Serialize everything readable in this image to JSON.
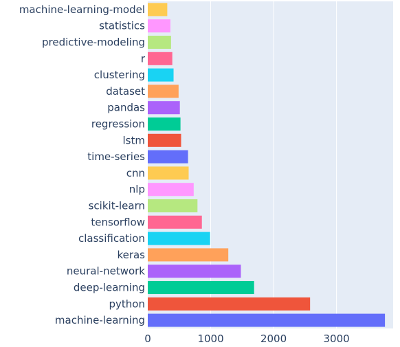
{
  "chart_data": {
    "type": "bar",
    "orientation": "horizontal",
    "title": "",
    "xlabel": "",
    "ylabel": "",
    "xlim": [
      0,
      3900
    ],
    "x_ticks": [
      0,
      1000,
      2000,
      3000
    ],
    "x_tick_labels": [
      "0",
      "1000",
      "2000",
      "3000"
    ],
    "grid": true,
    "legend": "none",
    "plot_background": "#e5ecf6",
    "grid_color": "#ffffff",
    "text_color": "#2a3f5f",
    "categories": [
      "machine-learning-model",
      "statistics",
      "predictive-modeling",
      "r",
      "clustering",
      "dataset",
      "pandas",
      "regression",
      "lstm",
      "time-series",
      "cnn",
      "nlp",
      "scikit-learn",
      "tensorflow",
      "classification",
      "keras",
      "neural-network",
      "deep-learning",
      "python",
      "machine-learning"
    ],
    "values": [
      310,
      360,
      370,
      390,
      410,
      490,
      510,
      520,
      530,
      640,
      650,
      730,
      790,
      860,
      990,
      1280,
      1480,
      1690,
      2580,
      3770
    ],
    "colors": [
      "#FECB52",
      "#FF97FF",
      "#B6E880",
      "#FF6692",
      "#19D3F3",
      "#FFA15A",
      "#AB63FA",
      "#00CC96",
      "#EF553B",
      "#636EFA",
      "#FECB52",
      "#FF97FF",
      "#B6E880",
      "#FF6692",
      "#19D3F3",
      "#FFA15A",
      "#AB63FA",
      "#00CC96",
      "#EF553B",
      "#636EFA"
    ]
  }
}
